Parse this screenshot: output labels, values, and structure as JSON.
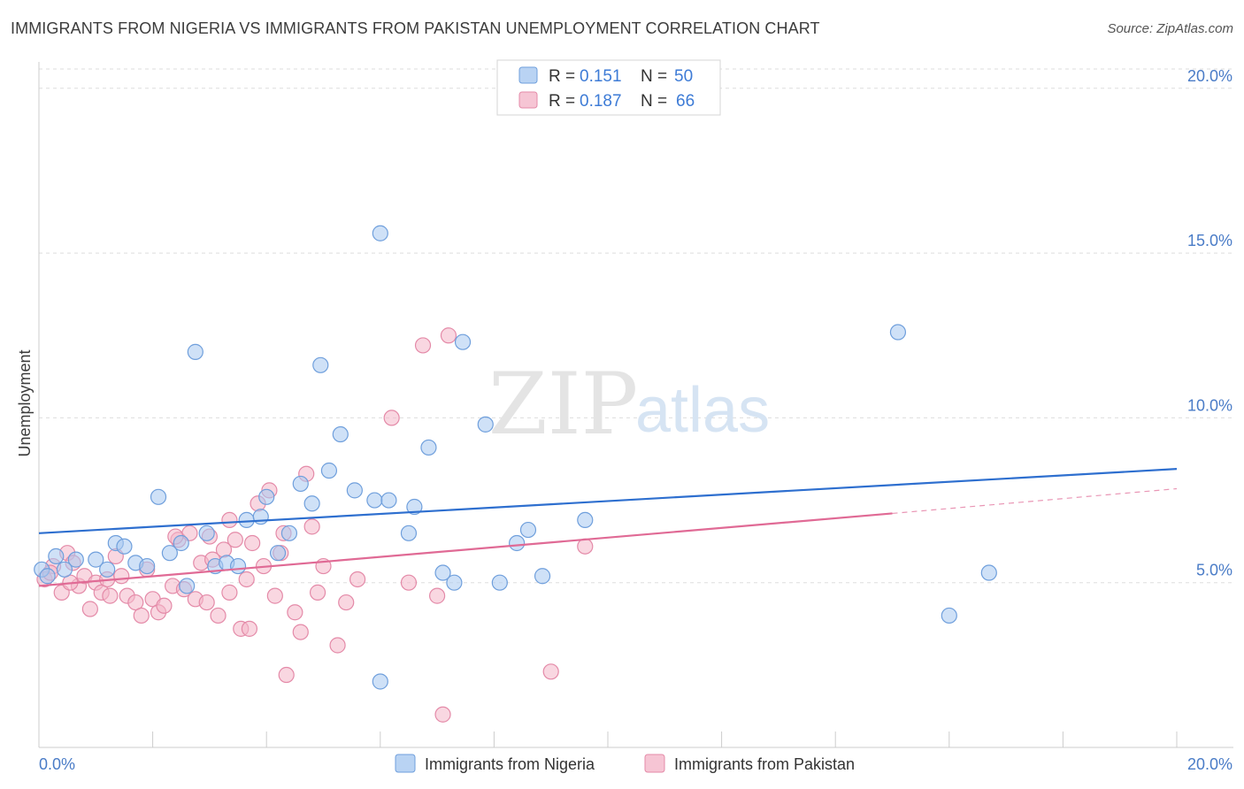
{
  "title": "IMMIGRANTS FROM NIGERIA VS IMMIGRANTS FROM PAKISTAN UNEMPLOYMENT CORRELATION CHART",
  "source": "Source: ZipAtlas.com",
  "watermark": {
    "zip": "ZIP",
    "atlas": "atlas"
  },
  "colors": {
    "nigeria_fill": "#a8c8f0",
    "nigeria_stroke": "#6f9fdc",
    "nigeria_line": "#2e6fcf",
    "pakistan_fill": "#f4b6c9",
    "pakistan_stroke": "#e48aa8",
    "pakistan_line": "#e06a95",
    "grid": "#dddddd",
    "tick_label": "#4a7cc7"
  },
  "legend": {
    "r_label": "R =",
    "n_label": "N =",
    "items": [
      {
        "r": "0.151",
        "n": "50"
      },
      {
        "r": "0.187",
        "n": "66"
      }
    ]
  },
  "chart_data": {
    "type": "scatter",
    "xlabel": "",
    "ylabel": "Unemployment",
    "xlim": [
      0,
      20
    ],
    "ylim": [
      0,
      20.8
    ],
    "x_tick_labels": [
      "0.0%",
      "20.0%"
    ],
    "y_ticks": [
      5,
      10,
      15,
      20
    ],
    "y_tick_labels": [
      "5.0%",
      "10.0%",
      "15.0%",
      "20.0%"
    ],
    "grid": true,
    "legend_position": "top-center",
    "series": [
      {
        "name": "Immigrants from Nigeria",
        "color": "#a8c8f0",
        "trend": {
          "x": [
            0,
            20
          ],
          "y": [
            6.5,
            8.45
          ]
        },
        "points": [
          [
            0.05,
            5.4
          ],
          [
            0.3,
            5.8
          ],
          [
            0.45,
            5.4
          ],
          [
            0.65,
            5.7
          ],
          [
            1.0,
            5.7
          ],
          [
            1.2,
            5.4
          ],
          [
            1.35,
            6.2
          ],
          [
            1.5,
            6.1
          ],
          [
            1.7,
            5.6
          ],
          [
            1.9,
            5.5
          ],
          [
            2.1,
            7.6
          ],
          [
            2.3,
            5.9
          ],
          [
            2.5,
            6.2
          ],
          [
            2.6,
            4.9
          ],
          [
            2.75,
            12.0
          ],
          [
            2.95,
            6.5
          ],
          [
            3.1,
            5.5
          ],
          [
            3.3,
            5.6
          ],
          [
            3.5,
            5.5
          ],
          [
            3.65,
            6.9
          ],
          [
            3.9,
            7.0
          ],
          [
            4.0,
            7.6
          ],
          [
            4.2,
            5.9
          ],
          [
            4.4,
            6.5
          ],
          [
            4.6,
            8.0
          ],
          [
            4.8,
            7.4
          ],
          [
            4.95,
            11.6
          ],
          [
            5.1,
            8.4
          ],
          [
            5.3,
            9.5
          ],
          [
            5.55,
            7.8
          ],
          [
            5.9,
            7.5
          ],
          [
            6.15,
            7.5
          ],
          [
            6.0,
            15.6
          ],
          [
            6.5,
            6.5
          ],
          [
            6.6,
            7.3
          ],
          [
            6.85,
            9.1
          ],
          [
            7.1,
            5.3
          ],
          [
            7.3,
            5.0
          ],
          [
            7.45,
            12.3
          ],
          [
            7.85,
            9.8
          ],
          [
            8.1,
            5.0
          ],
          [
            8.4,
            6.2
          ],
          [
            8.6,
            6.6
          ],
          [
            8.85,
            5.2
          ],
          [
            9.6,
            6.9
          ],
          [
            6.0,
            2.0
          ],
          [
            15.1,
            12.6
          ],
          [
            16.0,
            4.0
          ],
          [
            16.7,
            5.3
          ],
          [
            0.15,
            5.2
          ]
        ]
      },
      {
        "name": "Immigrants from Pakistan",
        "color": "#f4b6c9",
        "trend": {
          "x": [
            0,
            15
          ],
          "y": [
            4.9,
            7.1
          ]
        },
        "trend_dashed": {
          "x": [
            15,
            20
          ],
          "y": [
            7.1,
            7.85
          ]
        },
        "points": [
          [
            0.1,
            5.1
          ],
          [
            0.25,
            5.5
          ],
          [
            0.4,
            4.7
          ],
          [
            0.5,
            5.9
          ],
          [
            0.6,
            5.6
          ],
          [
            0.7,
            4.9
          ],
          [
            0.8,
            5.2
          ],
          [
            0.9,
            4.2
          ],
          [
            1.0,
            5.0
          ],
          [
            1.1,
            4.7
          ],
          [
            1.2,
            5.1
          ],
          [
            1.35,
            5.8
          ],
          [
            1.45,
            5.2
          ],
          [
            1.55,
            4.6
          ],
          [
            1.7,
            4.4
          ],
          [
            1.8,
            4.0
          ],
          [
            1.9,
            5.4
          ],
          [
            2.0,
            4.5
          ],
          [
            2.1,
            4.1
          ],
          [
            2.2,
            4.3
          ],
          [
            2.35,
            4.9
          ],
          [
            2.45,
            6.3
          ],
          [
            2.55,
            4.8
          ],
          [
            2.65,
            6.5
          ],
          [
            2.75,
            4.5
          ],
          [
            2.85,
            5.6
          ],
          [
            2.95,
            4.4
          ],
          [
            3.05,
            5.7
          ],
          [
            3.15,
            4.0
          ],
          [
            3.25,
            6.0
          ],
          [
            3.35,
            4.7
          ],
          [
            3.45,
            6.3
          ],
          [
            3.55,
            3.6
          ],
          [
            3.65,
            5.1
          ],
          [
            3.75,
            6.2
          ],
          [
            3.85,
            7.4
          ],
          [
            3.95,
            5.5
          ],
          [
            4.05,
            7.8
          ],
          [
            4.15,
            4.6
          ],
          [
            4.25,
            5.9
          ],
          [
            4.35,
            2.2
          ],
          [
            4.5,
            4.1
          ],
          [
            4.6,
            3.5
          ],
          [
            4.7,
            8.3
          ],
          [
            4.8,
            6.7
          ],
          [
            4.9,
            4.7
          ],
          [
            5.0,
            5.5
          ],
          [
            5.25,
            3.1
          ],
          [
            5.4,
            4.4
          ],
          [
            5.6,
            5.1
          ],
          [
            6.2,
            10.0
          ],
          [
            6.5,
            5.0
          ],
          [
            6.75,
            12.2
          ],
          [
            7.0,
            4.6
          ],
          [
            7.2,
            12.5
          ],
          [
            7.1,
            1.0
          ],
          [
            9.0,
            2.3
          ],
          [
            9.6,
            6.1
          ],
          [
            0.2,
            5.3
          ],
          [
            0.55,
            5.0
          ],
          [
            1.25,
            4.6
          ],
          [
            2.4,
            6.4
          ],
          [
            3.35,
            6.9
          ],
          [
            3.0,
            6.4
          ],
          [
            3.7,
            3.6
          ],
          [
            4.3,
            6.5
          ]
        ]
      }
    ]
  }
}
